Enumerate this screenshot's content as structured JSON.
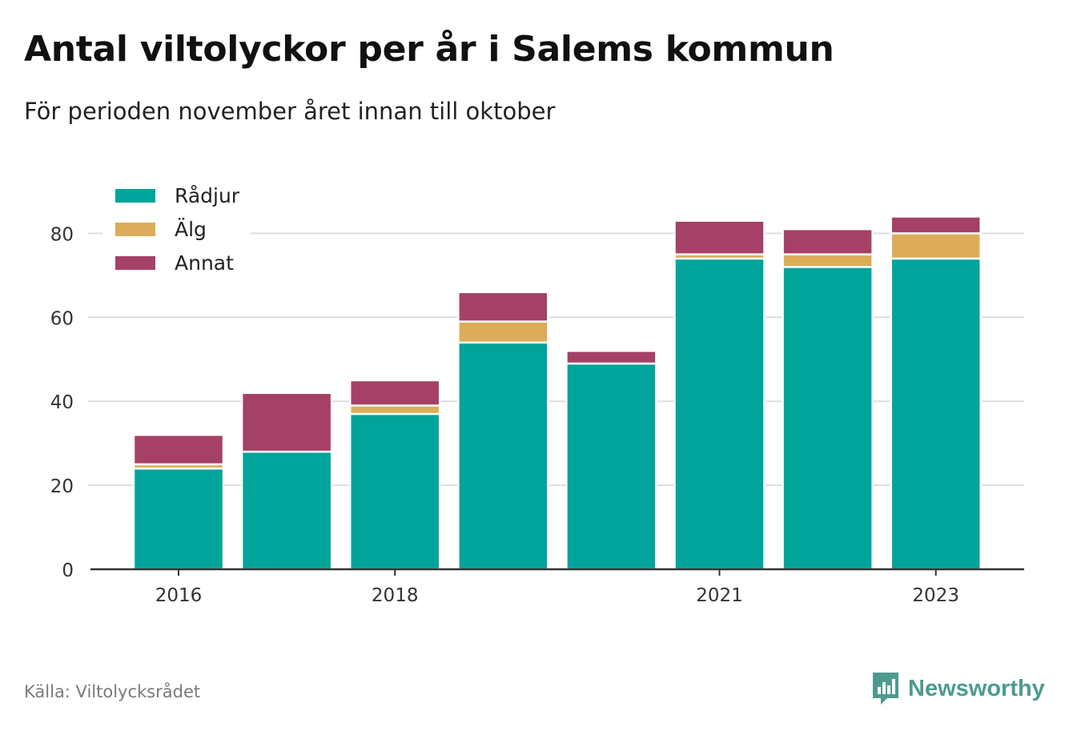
{
  "header": {
    "title": "Antal viltolyckor per år i Salems kommun",
    "subtitle": "För perioden november året innan till oktober"
  },
  "footer": {
    "source": "Källa: Viltolycksrådet",
    "brand": "Newsworthy",
    "brand_icon": "bar-chart-speech-bubble-icon"
  },
  "colors": {
    "Rådjur": "#00a49a",
    "Älg": "#ddac5a",
    "Annat": "#a54166",
    "grid": "#dddddd",
    "axis": "#333333",
    "brand": "#4e9a8f"
  },
  "chart_data": {
    "type": "bar",
    "stacked": true,
    "categories": [
      "2016",
      "2017",
      "2018",
      "2019",
      "2020",
      "2021",
      "2022",
      "2023"
    ],
    "tick_labels": [
      "2016",
      "",
      "2018",
      "",
      "",
      "2021",
      "",
      "2023"
    ],
    "series": [
      {
        "name": "Rådjur",
        "values": [
          24,
          28,
          37,
          54,
          49,
          74,
          72,
          74
        ]
      },
      {
        "name": "Älg",
        "values": [
          1,
          0,
          2,
          5,
          0,
          1,
          3,
          6
        ]
      },
      {
        "name": "Annat",
        "values": [
          7,
          14,
          6,
          7,
          3,
          8,
          6,
          4
        ]
      }
    ],
    "ylim": [
      0,
      90
    ],
    "yticks": [
      0,
      20,
      40,
      60,
      80
    ],
    "grid": true,
    "legend_position": "top-left"
  }
}
